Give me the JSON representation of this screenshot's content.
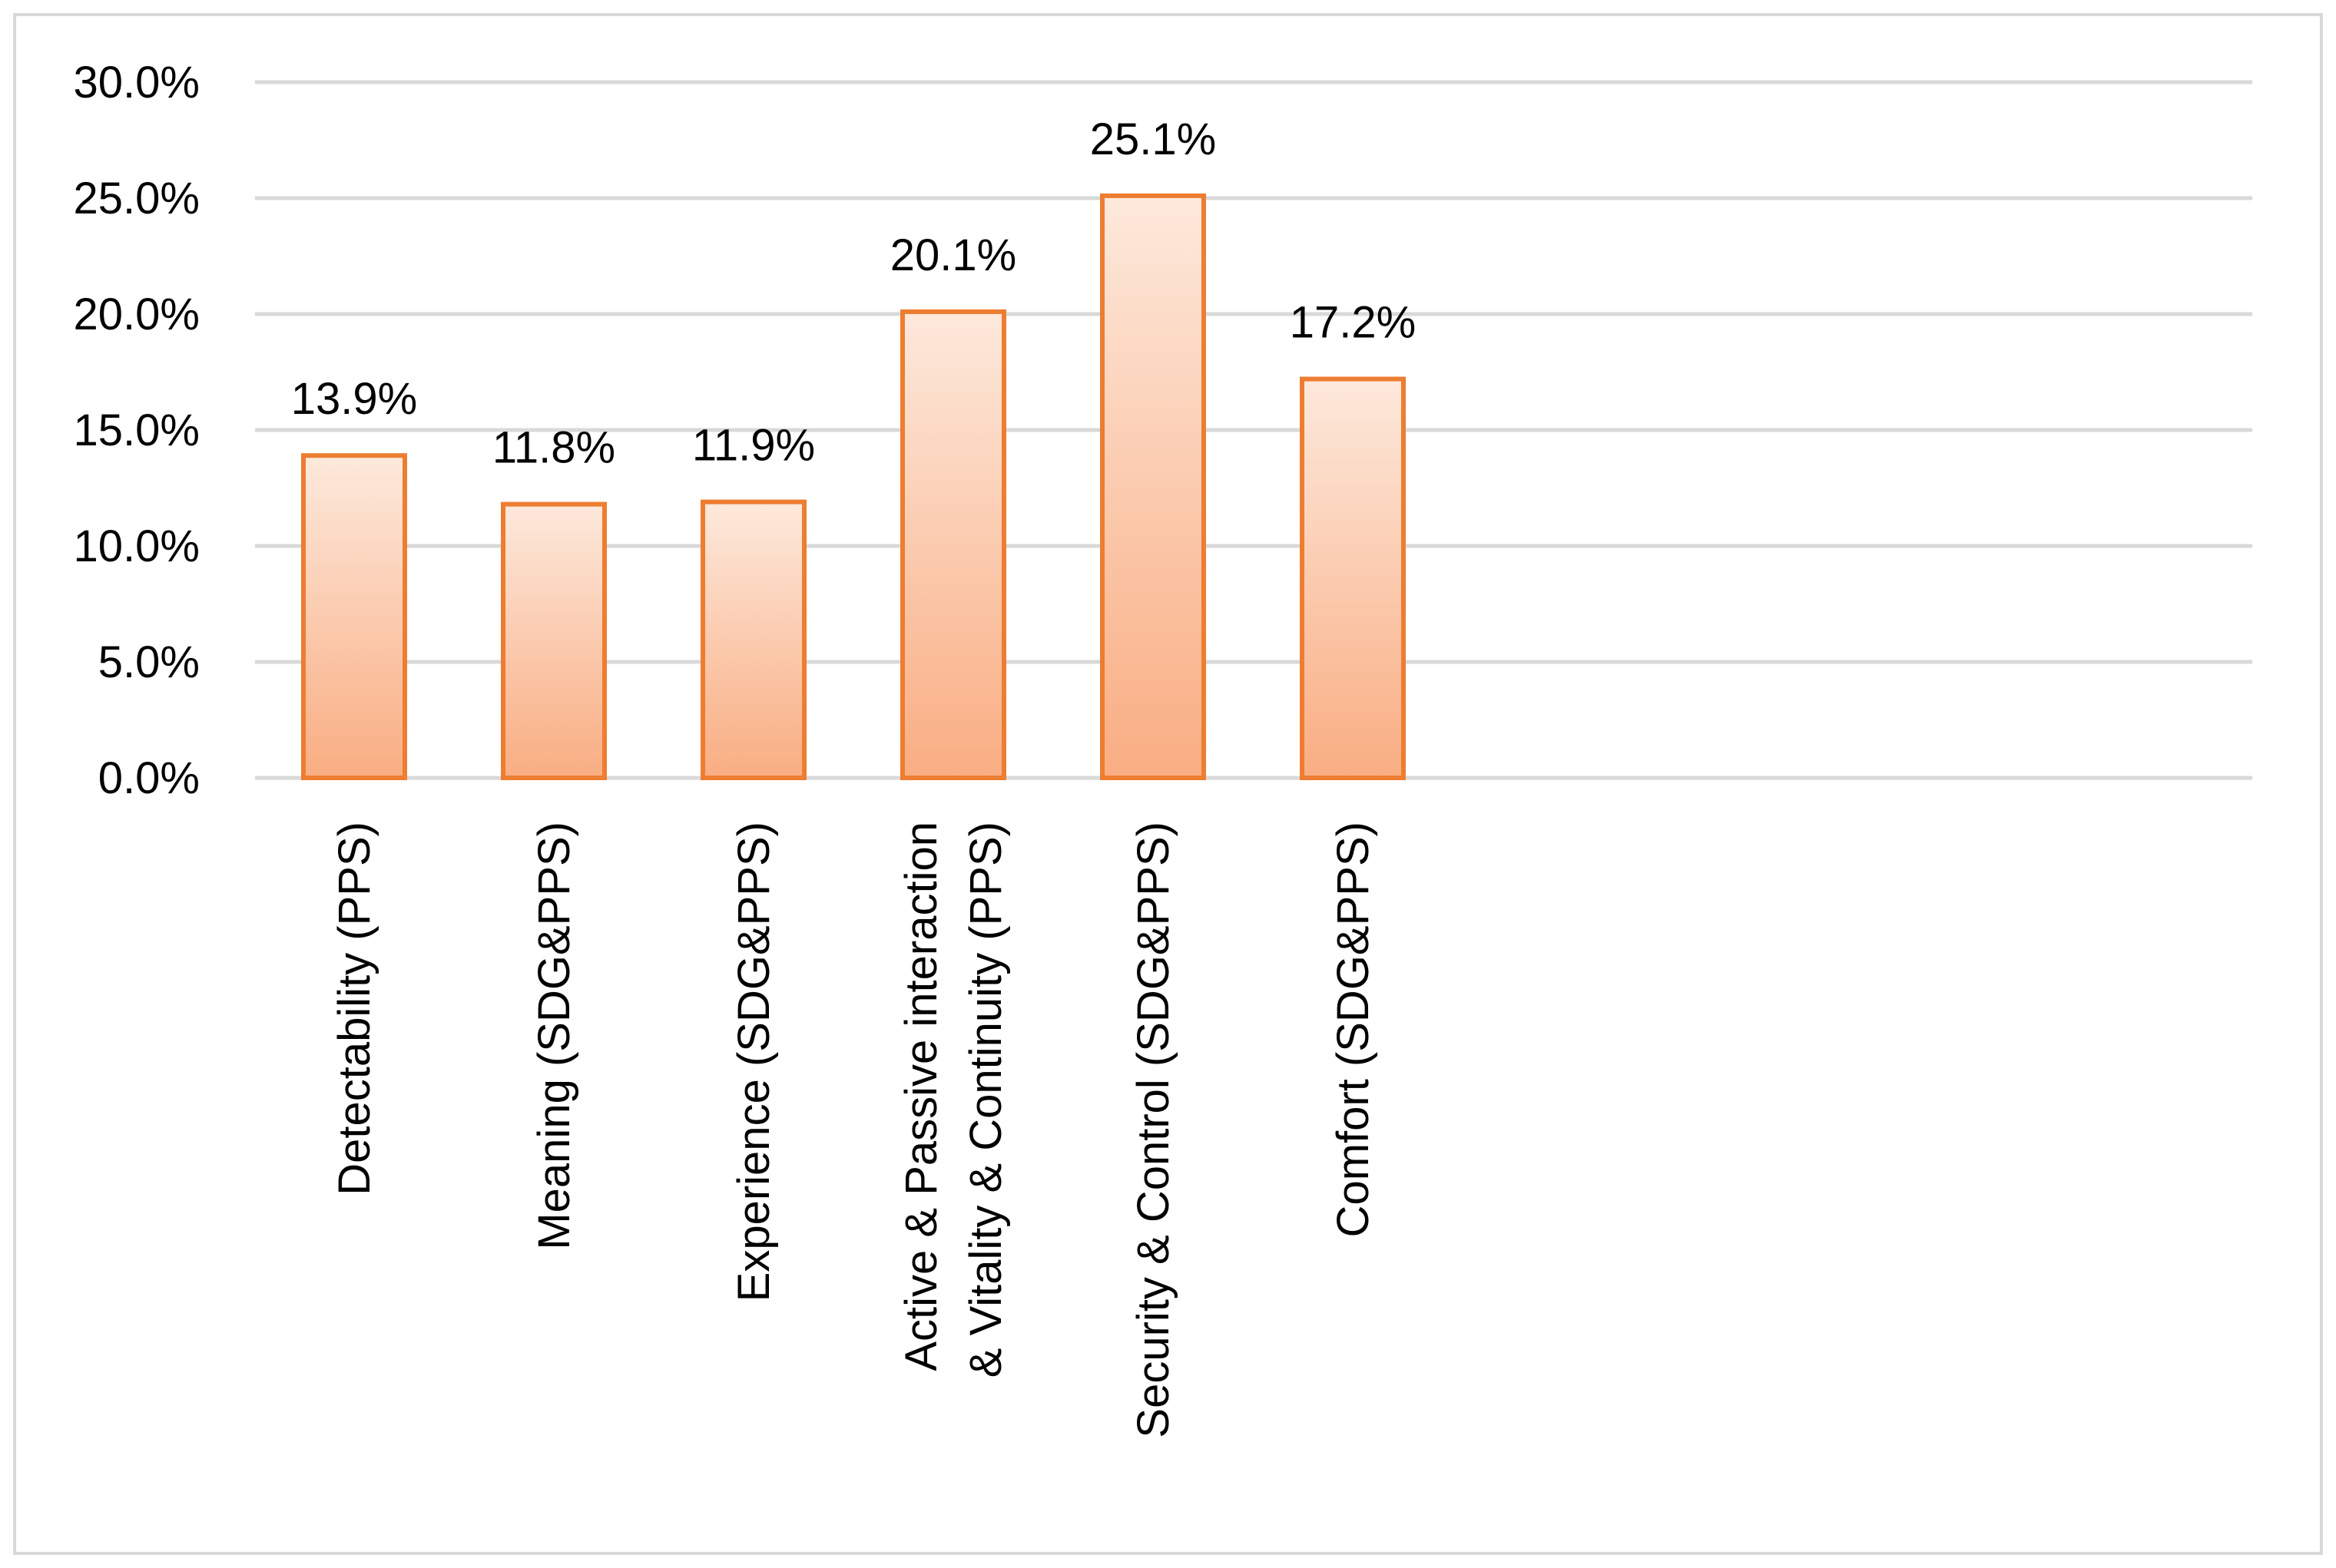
{
  "chart_data": {
    "type": "bar",
    "title": "",
    "xlabel": "",
    "ylabel": "",
    "ylim": [
      0,
      30
    ],
    "yticks": [
      "0.0%",
      "5.0%",
      "10.0%",
      "15.0%",
      "20.0%",
      "25.0%",
      "30.0%"
    ],
    "grid": true,
    "legend": "none",
    "categories": [
      [
        "Detectability (PPS)"
      ],
      [
        "Meaning (SDG&PPS)"
      ],
      [
        "Experience (SDG&PPS)"
      ],
      [
        "Active & Passive interaction",
        "& Vitality & Continuity (PPS)"
      ],
      [
        "Security & Control (SDG&PPS)"
      ],
      [
        "Comfort (SDG&PPS)"
      ]
    ],
    "values": [
      13.9,
      11.8,
      11.9,
      20.1,
      25.1,
      17.2
    ],
    "value_labels": [
      "13.9%",
      "11.8%",
      "11.9%",
      "20.1%",
      "25.1%",
      "17.2%"
    ],
    "colors": {
      "bar_top": "#fde9dc",
      "bar_bottom": "#f9ad82",
      "bar_border": "#ed7d31",
      "grid": "#d9d9d9",
      "frame": "#d9d9d9"
    }
  }
}
